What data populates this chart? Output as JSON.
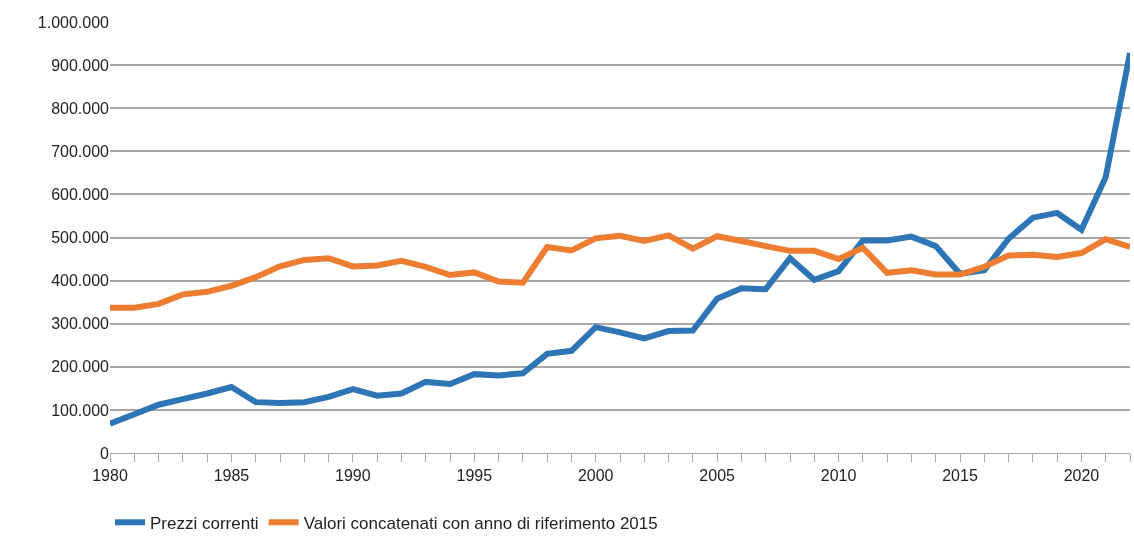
{
  "chart_data": {
    "type": "line",
    "x": [
      1980,
      1981,
      1982,
      1983,
      1984,
      1985,
      1986,
      1987,
      1988,
      1989,
      1990,
      1991,
      1992,
      1993,
      1994,
      1995,
      1996,
      1997,
      1998,
      1999,
      2000,
      2001,
      2002,
      2003,
      2004,
      2005,
      2006,
      2007,
      2008,
      2009,
      2010,
      2011,
      2012,
      2013,
      2014,
      2015,
      2016,
      2017,
      2018,
      2019,
      2020,
      2021,
      2022
    ],
    "series": [
      {
        "name": "Prezzi correnti",
        "color": "#2e75b6",
        "values": [
          68000,
          90000,
          112000,
          125000,
          138000,
          153000,
          118000,
          116000,
          118000,
          130000,
          148000,
          133000,
          138000,
          165000,
          160000,
          183000,
          180000,
          185000,
          230000,
          237000,
          292000,
          280000,
          266000,
          283000,
          284000,
          358000,
          382000,
          380000,
          452000,
          402000,
          422000,
          493000,
          493000,
          502000,
          480000,
          416000,
          424000,
          497000,
          546000,
          557000,
          518000,
          640000,
          928000
        ]
      },
      {
        "name": "Valori concatenati con anno di riferimento 2015",
        "color": "#ed7d31",
        "values": [
          337000,
          337000,
          346000,
          368000,
          374000,
          388000,
          408000,
          433000,
          448000,
          452000,
          433000,
          435000,
          446000,
          432000,
          413000,
          419000,
          398000,
          395000,
          478000,
          470000,
          498000,
          504000,
          492000,
          505000,
          474000,
          503000,
          492000,
          480000,
          469000,
          469000,
          450000,
          476000,
          418000,
          424000,
          414000,
          414000,
          432000,
          458000,
          460000,
          455000,
          464000,
          496000,
          478000
        ]
      }
    ],
    "xlim": [
      1980,
      2022
    ],
    "xticks": [
      1980,
      1985,
      1990,
      1995,
      2000,
      2005,
      2010,
      2015,
      2020
    ],
    "ylim": [
      0,
      1000000
    ],
    "yticks": [
      0,
      {
        "value": 100000,
        "label": "100.000"
      },
      {
        "value": 200000,
        "label": "200.000"
      },
      {
        "value": 300000,
        "label": "300.000"
      },
      {
        "value": 400000,
        "label": "400.000"
      },
      {
        "value": 500000,
        "label": "500.000"
      },
      {
        "value": 600000,
        "label": "600.000"
      },
      {
        "value": 700000,
        "label": "700.000"
      },
      {
        "value": 800000,
        "label": "800.000"
      },
      {
        "value": 900000,
        "label": "900.000"
      },
      {
        "value": 1000000,
        "label": "1.000.000"
      }
    ],
    "grid": "y",
    "legend": "bottom",
    "line_style": "solid",
    "marker": "none"
  }
}
